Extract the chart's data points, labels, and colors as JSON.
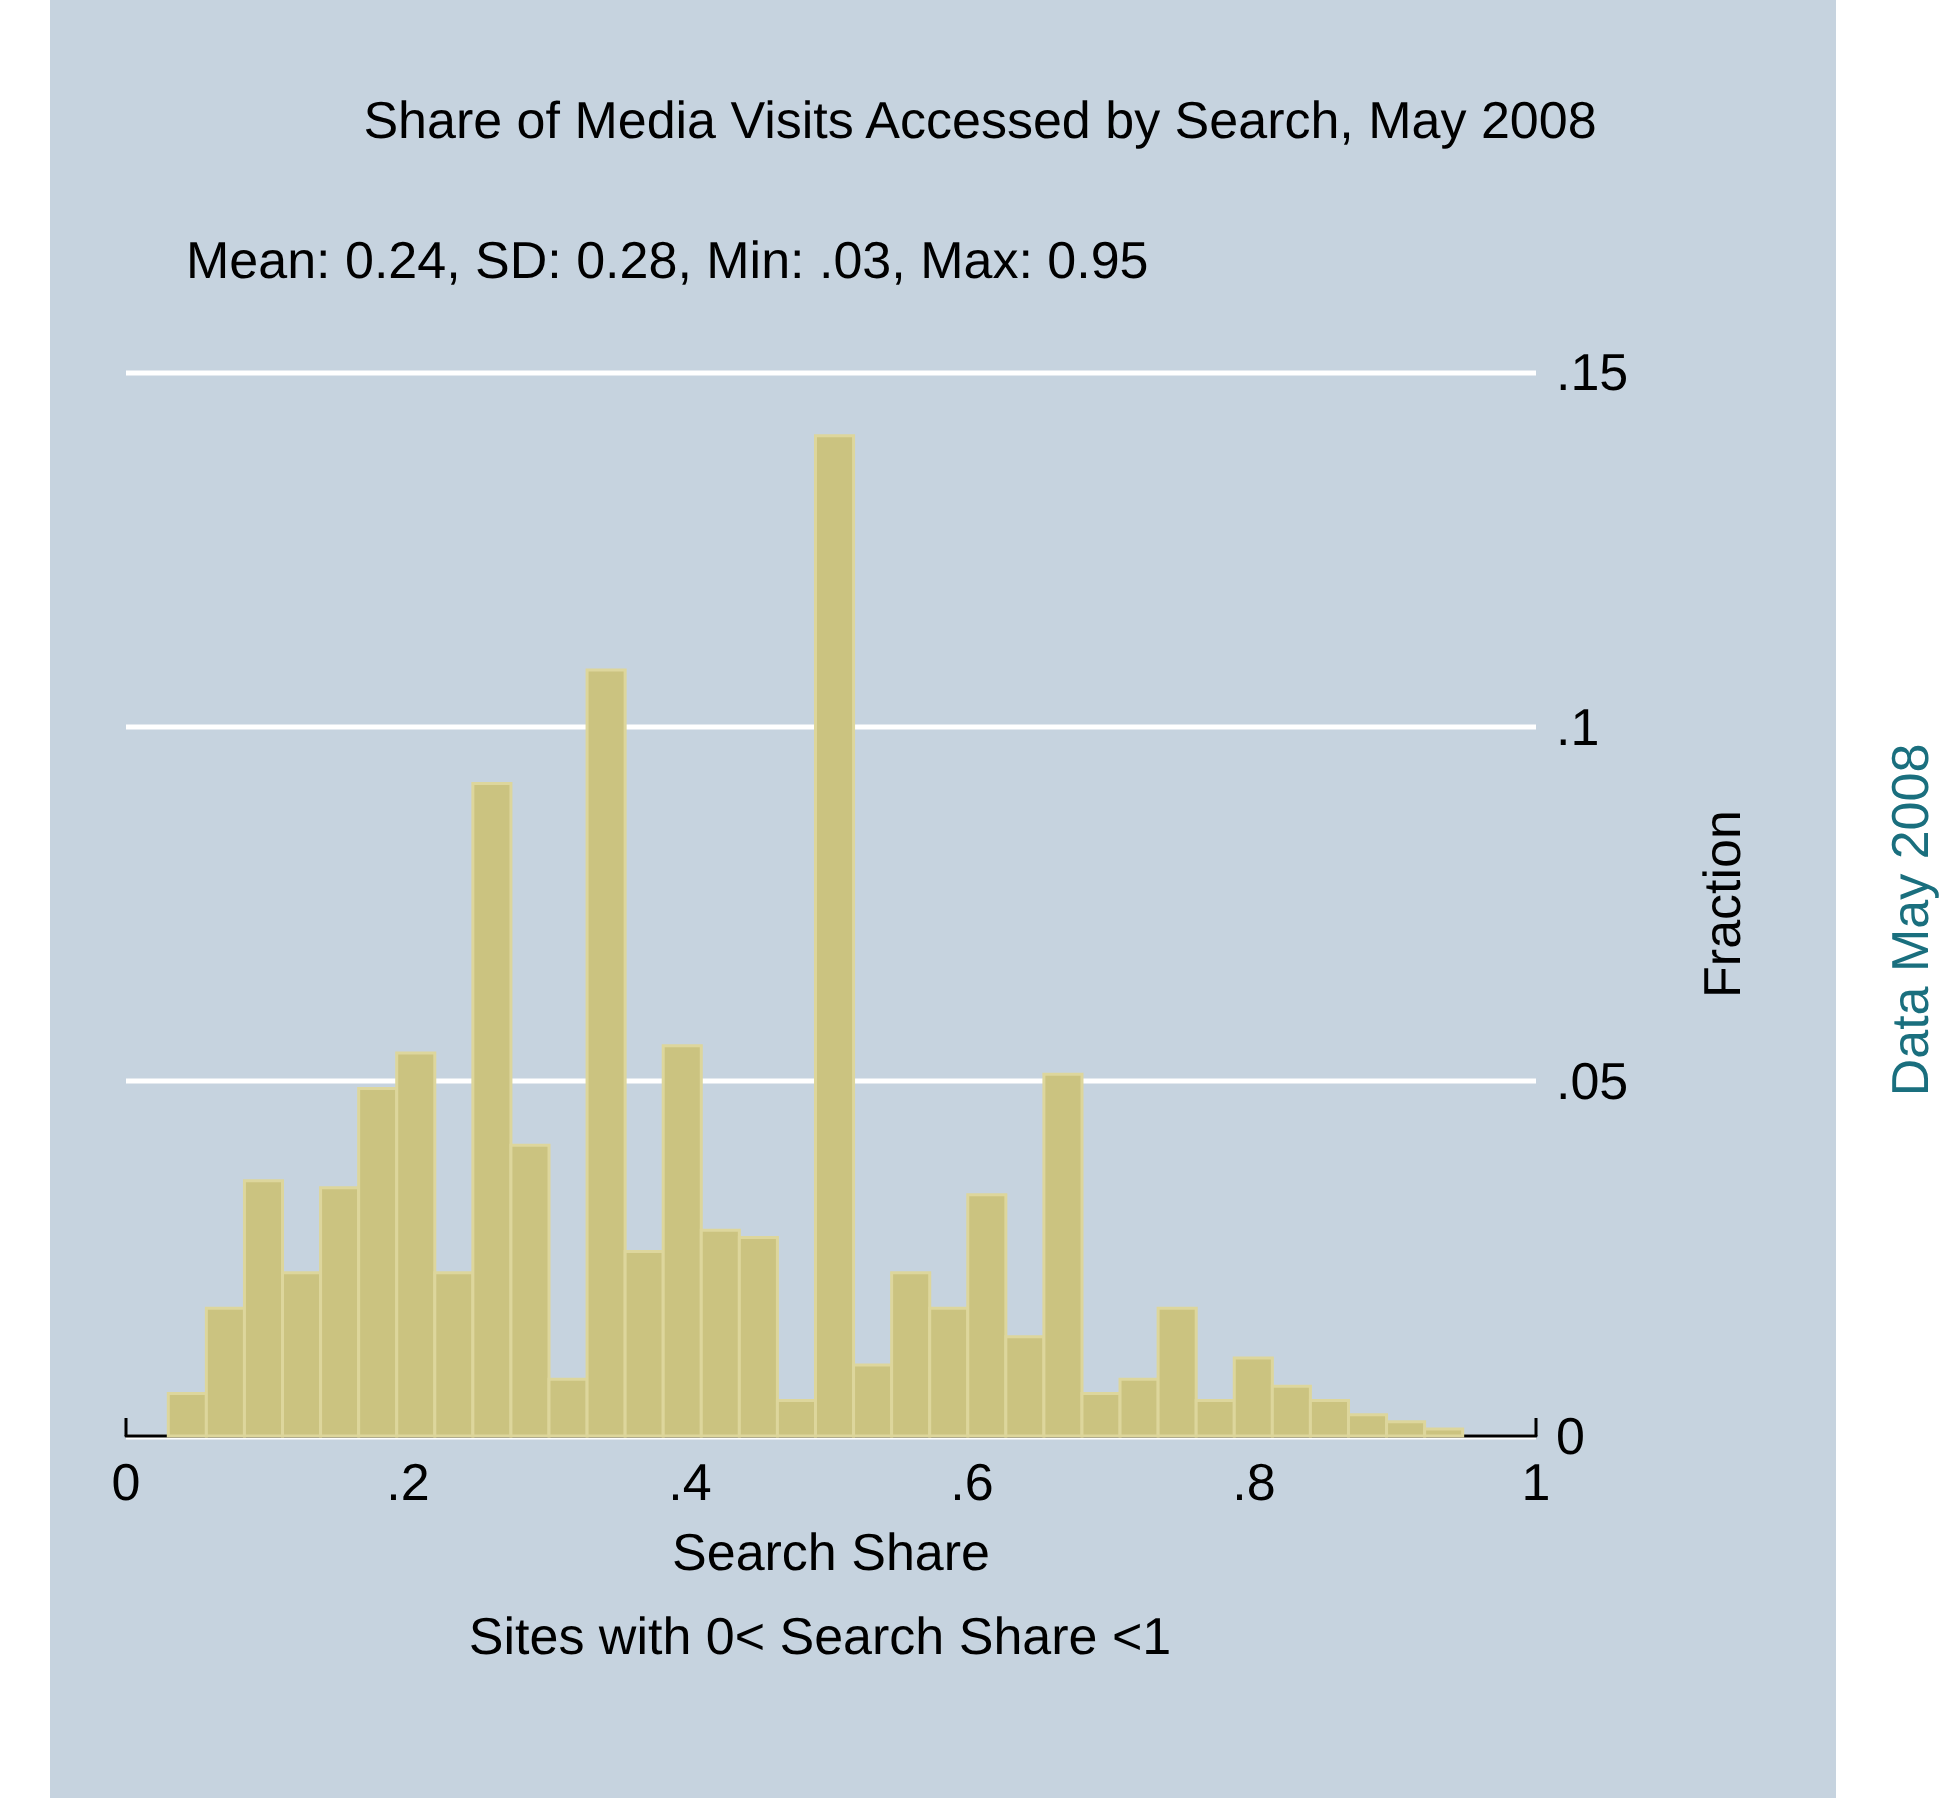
{
  "chart_data": {
    "type": "histogram",
    "title": "Share of Media Visits Accessed by Search, May 2008",
    "subtitle": "Mean: 0.24, SD: 0.28, Min: .03, Max: 0.95",
    "xlabel": "Search Share",
    "ylabel": "Fraction",
    "annotations": [
      "Sites with 0< Search Share <1",
      "Data May 2008"
    ],
    "bins": [
      0.03,
      0.057,
      0.084,
      0.111,
      0.138,
      0.165,
      0.192,
      0.219,
      0.246,
      0.273,
      0.3,
      0.327,
      0.354,
      0.381,
      0.408,
      0.435,
      0.462,
      0.489,
      0.516,
      0.543,
      0.57,
      0.597,
      0.624,
      0.651,
      0.678,
      0.705,
      0.732,
      0.759,
      0.786,
      0.813,
      0.84,
      0.867,
      0.894,
      0.921,
      0.948
    ],
    "values": [
      0.006,
      0.018,
      0.036,
      0.023,
      0.035,
      0.049,
      0.054,
      0.023,
      0.092,
      0.041,
      0.008,
      0.108,
      0.026,
      0.055,
      0.029,
      0.028,
      0.005,
      0.141,
      0.01,
      0.023,
      0.018,
      0.034,
      0.014,
      0.051,
      0.006,
      0.008,
      0.018,
      0.005,
      0.011,
      0.007,
      0.005,
      0.003,
      0.002,
      0.001
    ],
    "color": "#cbc380",
    "xlim": [
      0,
      1
    ],
    "xticks": [
      0,
      {
        "value": 0.2,
        "label": ".2"
      },
      {
        "value": 0.4,
        "label": ".4"
      },
      {
        "value": 0.6,
        "label": ".6"
      },
      {
        "value": 0.8,
        "label": ".8"
      },
      1
    ],
    "ylim": [
      0,
      0.15
    ],
    "yticks": [
      0,
      {
        "value": 0.05,
        "label": ".05"
      },
      {
        "value": 0.1,
        "label": ".1"
      },
      {
        "value": 0.15,
        "label": ".15"
      }
    ],
    "grid": "y",
    "legend": false
  }
}
